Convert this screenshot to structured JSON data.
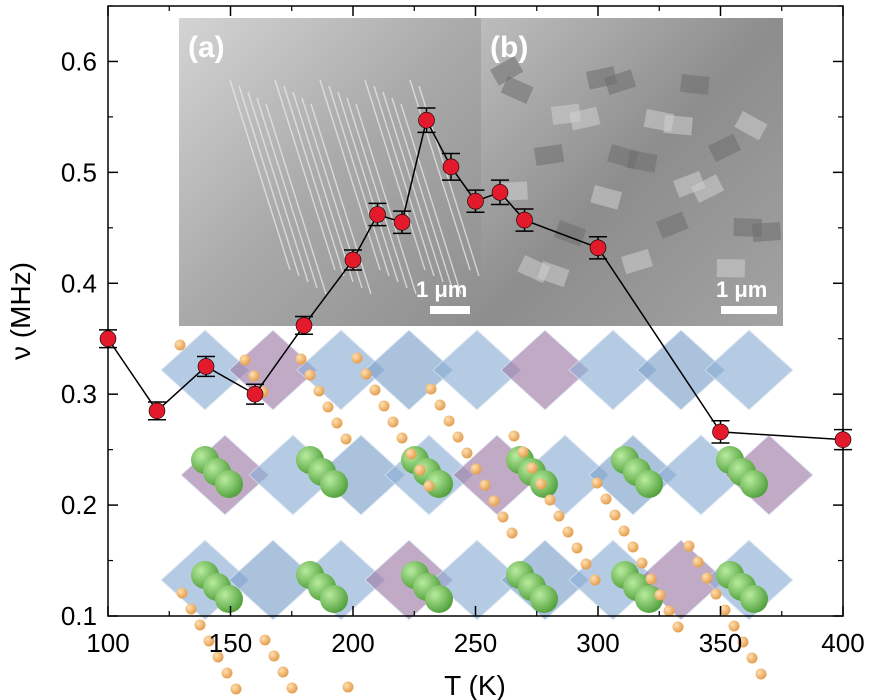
{
  "chart_data": {
    "type": "line",
    "xlabel": "T (K)",
    "ylabel": "ν (MHz)",
    "xlim": [
      100,
      400
    ],
    "ylim": [
      0.1,
      0.65
    ],
    "xticks": [
      "100",
      "150",
      "200",
      "250",
      "300",
      "350",
      "400"
    ],
    "yticks": [
      "0.1",
      "0.2",
      "0.3",
      "0.4",
      "0.5",
      "0.6"
    ],
    "grid": false,
    "marker_color": "#e31a2b",
    "line_color": "#000000",
    "series": [
      {
        "x": [
          100,
          120,
          140,
          160,
          180,
          200,
          210,
          220,
          230,
          240,
          250,
          260,
          270,
          300,
          350,
          400
        ],
        "y": [
          0.35,
          0.285,
          0.325,
          0.3,
          0.362,
          0.421,
          0.462,
          0.455,
          0.547,
          0.505,
          0.474,
          0.482,
          0.457,
          0.432,
          0.266,
          0.259
        ],
        "err": [
          0.008,
          0.008,
          0.009,
          0.009,
          0.008,
          0.009,
          0.01,
          0.01,
          0.011,
          0.012,
          0.01,
          0.011,
          0.01,
          0.01,
          0.01,
          0.009
        ]
      }
    ],
    "insets": [
      {
        "label": "(a)",
        "scale_bar": "1 μm"
      },
      {
        "label": "(b)",
        "scale_bar": "1 μm"
      }
    ]
  }
}
